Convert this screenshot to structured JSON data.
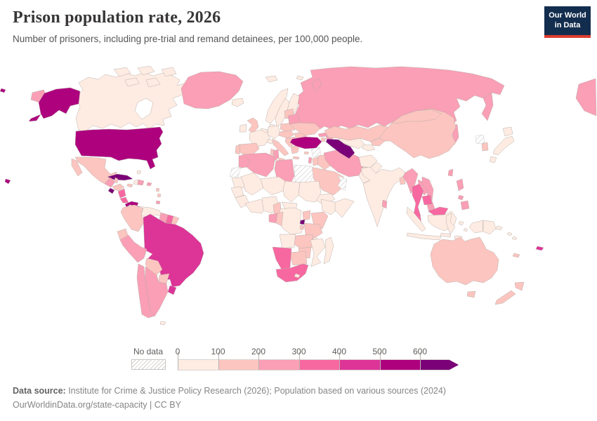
{
  "header": {
    "title": "Prison population rate, 2026",
    "subtitle": "Number of prisoners, including pre-trial and remand detainees, per 100,000 people.",
    "logo": {
      "line1": "Our World",
      "line2": "in Data",
      "navy": "#132d4e",
      "red": "#dc3c2e"
    }
  },
  "legend": {
    "no_data_label": "No data",
    "tick_labels": [
      "0",
      "100",
      "200",
      "300",
      "400",
      "500",
      "600"
    ]
  },
  "footer": {
    "source_label": "Data source:",
    "source_text": " Institute for Crime & Justice Policy Research (2026); Population based on various sources (2024)",
    "line2": "OurWorldinData.org/state-capacity | CC BY"
  },
  "chart_data": {
    "type": "choropleth",
    "title": "Prison population rate",
    "year": "2026",
    "unit": "prisoners per 100,000 people",
    "legend_position": "bottom",
    "open_ended_max": true,
    "bins": [
      {
        "label": "0-100",
        "color": "#feebe2"
      },
      {
        "label": "100-200",
        "color": "#fcc5c0"
      },
      {
        "label": "200-300",
        "color": "#fa9fb5"
      },
      {
        "label": "300-400",
        "color": "#f768a1"
      },
      {
        "label": "400-500",
        "color": "#dd3497"
      },
      {
        "label": "500-600",
        "color": "#ae017e"
      },
      {
        "label": "600+",
        "color": "#7a0177"
      }
    ],
    "no_data": {
      "label": "No data",
      "countries": [
        "Egypt",
        "Syria",
        "Oman",
        "Western Sahara",
        "North Korea"
      ]
    },
    "regions": {
      "russia": {
        "name": "Russia",
        "bin": "200-300"
      },
      "canada": {
        "name": "Canada",
        "bin": "0-100"
      },
      "greenland": {
        "name": "Greenland",
        "bin": "200-300"
      },
      "usa": {
        "name": "United States",
        "bin": "500-600"
      },
      "mexico": {
        "name": "Mexico",
        "bin": "100-200"
      },
      "cuba": {
        "name": "Cuba",
        "bin": "600+"
      },
      "haiti": {
        "name": "Haiti",
        "bin": "0-100"
      },
      "dominican-republic": {
        "name": "Dominican Republic",
        "bin": "200-300"
      },
      "jamaica": {
        "name": "Jamaica",
        "bin": "100-200"
      },
      "puerto-rico": {
        "name": "Puerto Rico",
        "bin": "200-300"
      },
      "bahamas": {
        "name": "Bahamas",
        "bin": "0-100"
      },
      "lesser-antilles": {
        "name": "Lesser Antilles",
        "bin": "100-200"
      },
      "trinidad": {
        "name": "Trinidad and Tobago",
        "bin": "200-300"
      },
      "guatemala": {
        "name": "Guatemala",
        "bin": "200-300"
      },
      "belize": {
        "name": "Belize",
        "bin": "100-200"
      },
      "honduras": {
        "name": "Honduras",
        "bin": "100-200"
      },
      "el-salvador": {
        "name": "El Salvador",
        "bin": "600+"
      },
      "nicaragua": {
        "name": "Nicaragua",
        "bin": "300-400"
      },
      "costa-rica": {
        "name": "Costa Rica",
        "bin": "300-400"
      },
      "panama": {
        "name": "Panama",
        "bin": "500-600"
      },
      "colombia": {
        "name": "Colombia",
        "bin": "100-200"
      },
      "venezuela": {
        "name": "Venezuela",
        "bin": "0-100"
      },
      "guyana": {
        "name": "Guyana",
        "bin": "200-300"
      },
      "suriname": {
        "name": "Suriname",
        "bin": "300-400"
      },
      "french-guiana": {
        "name": "French Guiana",
        "bin": "100-200"
      },
      "ecuador": {
        "name": "Ecuador",
        "bin": "100-200"
      },
      "peru": {
        "name": "Peru",
        "bin": "200-300"
      },
      "brazil": {
        "name": "Brazil",
        "bin": "400-500"
      },
      "bolivia": {
        "name": "Bolivia",
        "bin": "100-200"
      },
      "paraguay": {
        "name": "Paraguay",
        "bin": "100-200"
      },
      "uruguay": {
        "name": "Uruguay",
        "bin": "400-500"
      },
      "chile": {
        "name": "Chile",
        "bin": "200-300"
      },
      "argentina": {
        "name": "Argentina",
        "bin": "200-300"
      },
      "falklands": {
        "name": "Falkland Islands",
        "bin": "0-100"
      },
      "iceland": {
        "name": "Iceland",
        "bin": "0-100"
      },
      "svalbard": {
        "name": "Svalbard",
        "bin": "0-100"
      },
      "norway": {
        "name": "Norway",
        "bin": "0-100"
      },
      "sweden": {
        "name": "Sweden",
        "bin": "0-100"
      },
      "finland": {
        "name": "Finland",
        "bin": "0-100"
      },
      "denmark": {
        "name": "Denmark",
        "bin": "0-100"
      },
      "uk": {
        "name": "United Kingdom",
        "bin": "100-200"
      },
      "ireland": {
        "name": "Ireland",
        "bin": "0-100"
      },
      "benelux": {
        "name": "Netherlands/Belgium",
        "bin": "0-100"
      },
      "germany": {
        "name": "Germany",
        "bin": "0-100"
      },
      "france": {
        "name": "France",
        "bin": "0-100"
      },
      "switzerland": {
        "name": "Switzerland",
        "bin": "0-100"
      },
      "spain": {
        "name": "Spain",
        "bin": "100-200"
      },
      "portugal": {
        "name": "Portugal",
        "bin": "100-200"
      },
      "italy": {
        "name": "Italy",
        "bin": "100-200"
      },
      "poland": {
        "name": "Poland",
        "bin": "100-200"
      },
      "central-europe": {
        "name": "Czechia/Slovakia/Hungary",
        "bin": "100-200"
      },
      "balkans": {
        "name": "Serbia/Balkans",
        "bin": "100-200"
      },
      "greece": {
        "name": "Greece",
        "bin": "100-200"
      },
      "romania": {
        "name": "Romania",
        "bin": "100-200"
      },
      "bulgaria": {
        "name": "Bulgaria",
        "bin": "100-200"
      },
      "baltics": {
        "name": "Baltic states",
        "bin": "100-200"
      },
      "belarus": {
        "name": "Belarus",
        "bin": "200-300"
      },
      "ukraine": {
        "name": "Ukraine",
        "bin": "100-200"
      },
      "turkey": {
        "name": "Turkey",
        "bin": "500-600"
      },
      "cyprus": {
        "name": "Cyprus",
        "bin": "100-200"
      },
      "georgia": {
        "name": "Georgia",
        "bin": "200-300"
      },
      "armenia": {
        "name": "Armenia",
        "bin": "100-200"
      },
      "azerbaijan": {
        "name": "Azerbaijan",
        "bin": "200-300"
      },
      "syria": {
        "name": "Syria",
        "bin": "no_data"
      },
      "israel": {
        "name": "Israel",
        "bin": "200-300"
      },
      "jordan": {
        "name": "Jordan",
        "bin": "100-200"
      },
      "iraq": {
        "name": "Iraq",
        "bin": "100-200"
      },
      "saudi-arabia": {
        "name": "Saudi Arabia",
        "bin": "100-200"
      },
      "yemen": {
        "name": "Yemen",
        "bin": "0-100"
      },
      "oman": {
        "name": "Oman",
        "bin": "no_data"
      },
      "iran": {
        "name": "Iran",
        "bin": "200-300"
      },
      "afghanistan": {
        "name": "Afghanistan",
        "bin": "0-100"
      },
      "pakistan": {
        "name": "Pakistan",
        "bin": "0-100"
      },
      "kazakhstan": {
        "name": "Kazakhstan",
        "bin": "100-200"
      },
      "uzbekistan": {
        "name": "Uzbekistan",
        "bin": "0-100"
      },
      "turkmenistan": {
        "name": "Turkmenistan",
        "bin": "600+"
      },
      "kyrgyzstan": {
        "name": "Kyrgyzstan",
        "bin": "100-200"
      },
      "tajikistan": {
        "name": "Tajikistan",
        "bin": "0-100"
      },
      "india": {
        "name": "India",
        "bin": "0-100"
      },
      "sri-lanka": {
        "name": "Sri Lanka",
        "bin": "200-300"
      },
      "bangladesh": {
        "name": "Bangladesh",
        "bin": "100-200"
      },
      "china": {
        "name": "China",
        "bin": "100-200"
      },
      "mongolia": {
        "name": "Mongolia",
        "bin": "100-200"
      },
      "myanmar": {
        "name": "Myanmar",
        "bin": "200-300"
      },
      "thailand": {
        "name": "Thailand",
        "bin": "300-400"
      },
      "laos": {
        "name": "Laos",
        "bin": "200-300"
      },
      "vietnam": {
        "name": "Vietnam",
        "bin": "200-300"
      },
      "cambodia": {
        "name": "Cambodia",
        "bin": "300-400"
      },
      "malaysia": {
        "name": "Malaysia",
        "bin": "300-400"
      },
      "indonesia": {
        "name": "Indonesia",
        "bin": "0-100"
      },
      "philippines": {
        "name": "Philippines",
        "bin": "200-300"
      },
      "taiwan": {
        "name": "Taiwan",
        "bin": "200-300"
      },
      "japan": {
        "name": "Japan",
        "bin": "0-100"
      },
      "south-korea": {
        "name": "South Korea",
        "bin": "100-200"
      },
      "north-korea": {
        "name": "North Korea",
        "bin": "no_data"
      },
      "papua-new-guinea": {
        "name": "Papua New Guinea",
        "bin": "0-100"
      },
      "solomon-islands": {
        "name": "Solomon Islands",
        "bin": "0-100"
      },
      "australia": {
        "name": "Australia",
        "bin": "100-200"
      },
      "new-zealand": {
        "name": "New Zealand",
        "bin": "100-200"
      },
      "fiji": {
        "name": "Fiji",
        "bin": "400-500"
      },
      "new-caledonia": {
        "name": "New Caledonia",
        "bin": "100-200"
      },
      "morocco": {
        "name": "Morocco",
        "bin": "200-300"
      },
      "western-sahara": {
        "name": "Western Sahara",
        "bin": "no_data"
      },
      "algeria": {
        "name": "Algeria",
        "bin": "200-300"
      },
      "tunisia": {
        "name": "Tunisia",
        "bin": "200-300"
      },
      "libya": {
        "name": "Libya",
        "bin": "200-300"
      },
      "egypt": {
        "name": "Egypt",
        "bin": "no_data"
      },
      "mauritania": {
        "name": "Mauritania",
        "bin": "0-100"
      },
      "mali": {
        "name": "Mali",
        "bin": "0-100"
      },
      "niger": {
        "name": "Niger",
        "bin": "0-100"
      },
      "chad": {
        "name": "Chad",
        "bin": "0-100"
      },
      "sudan": {
        "name": "Sudan",
        "bin": "0-100"
      },
      "senegal": {
        "name": "Senegal",
        "bin": "0-100"
      },
      "guinea": {
        "name": "Guinea",
        "bin": "0-100"
      },
      "west-africa-coast": {
        "name": "Ivory Coast/Ghana",
        "bin": "0-100"
      },
      "nigeria": {
        "name": "Nigeria",
        "bin": "0-100"
      },
      "cameroon": {
        "name": "Cameroon",
        "bin": "100-200"
      },
      "central-african-republic": {
        "name": "Central African Republic",
        "bin": "0-100"
      },
      "ethiopia": {
        "name": "Ethiopia",
        "bin": "0-100"
      },
      "somalia": {
        "name": "Somalia",
        "bin": "0-100"
      },
      "uganda": {
        "name": "Uganda",
        "bin": "100-200"
      },
      "kenya": {
        "name": "Kenya",
        "bin": "100-200"
      },
      "rwanda": {
        "name": "Rwanda",
        "bin": "600+"
      },
      "burundi": {
        "name": "Burundi",
        "bin": "100-200"
      },
      "drc": {
        "name": "Democratic Republic of Congo",
        "bin": "0-100"
      },
      "gabon": {
        "name": "Gabon",
        "bin": "200-300"
      },
      "congo": {
        "name": "Congo",
        "bin": "100-200"
      },
      "tanzania": {
        "name": "Tanzania",
        "bin": "100-200"
      },
      "angola": {
        "name": "Angola",
        "bin": "0-100"
      },
      "zambia": {
        "name": "Zambia",
        "bin": "100-200"
      },
      "malawi": {
        "name": "Malawi",
        "bin": "0-100"
      },
      "mozambique": {
        "name": "Mozambique",
        "bin": "0-100"
      },
      "zimbabwe": {
        "name": "Zimbabwe",
        "bin": "100-200"
      },
      "botswana": {
        "name": "Botswana",
        "bin": "100-200"
      },
      "namibia": {
        "name": "Namibia",
        "bin": "300-400"
      },
      "south-africa": {
        "name": "South Africa",
        "bin": "300-400"
      },
      "lesotho": {
        "name": "Lesotho",
        "bin": "0-100"
      },
      "madagascar": {
        "name": "Madagascar",
        "bin": "0-100"
      }
    }
  }
}
